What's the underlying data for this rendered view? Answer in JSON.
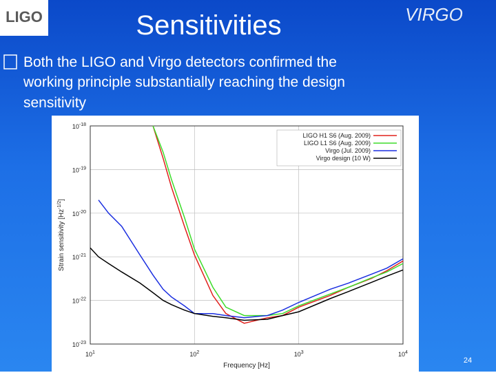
{
  "slide": {
    "title": "Sensitivities",
    "logo_left": "LIGO",
    "logo_right": "VIRGO",
    "bullet_lines": [
      "Both the LIGO and Virgo detectors confirmed the",
      "working principle substantially reaching the design",
      "sensitivity"
    ],
    "page_number": "24"
  },
  "chart_data": {
    "type": "line",
    "xscale": "log",
    "yscale": "log",
    "grid": true,
    "legend": "top-right",
    "xlabel": "Frequency [Hz]",
    "ylabel": {
      "text": "Strain sensitivity [Hz",
      "sup": "-1/2",
      "end": "]"
    },
    "x": [
      10,
      12,
      15,
      20,
      30,
      40,
      50,
      60,
      80,
      100,
      150,
      200,
      300,
      500,
      700,
      1000,
      2000,
      3000,
      5000,
      7000,
      10000
    ],
    "xlim": [
      10,
      10000
    ],
    "ylim": [
      1e-23,
      1e-18
    ],
    "xticks": [
      {
        "value": 10,
        "label": "10",
        "exp": "1"
      },
      {
        "value": 100,
        "label": "10",
        "exp": "2"
      },
      {
        "value": 1000,
        "label": "10",
        "exp": "3"
      },
      {
        "value": 10000,
        "label": "10",
        "exp": "4"
      }
    ],
    "yticks": [
      {
        "value": 1e-23,
        "label": "10",
        "exp": "-23"
      },
      {
        "value": 1e-22,
        "label": "10",
        "exp": "-22"
      },
      {
        "value": 1e-21,
        "label": "10",
        "exp": "-21"
      },
      {
        "value": 1e-20,
        "label": "10",
        "exp": "-20"
      },
      {
        "value": 1e-19,
        "label": "10",
        "exp": "-19"
      },
      {
        "value": 1e-18,
        "label": "10",
        "exp": "-18"
      }
    ],
    "series": [
      {
        "name": "LIGO H1 S6 (Aug. 2009)",
        "color": "#e0201c",
        "values": [
          null,
          null,
          null,
          null,
          null,
          1e-18,
          1.8e-19,
          4e-20,
          5e-21,
          1.1e-21,
          1.3e-22,
          5e-23,
          3e-23,
          4e-23,
          4.5e-23,
          7e-23,
          1.3e-22,
          2e-22,
          3.2e-22,
          4.8e-22,
          8e-22
        ]
      },
      {
        "name": "LIGO L1 S6 (Aug. 2009)",
        "color": "#3ddc2a",
        "values": [
          null,
          null,
          null,
          null,
          null,
          1e-18,
          2.5e-19,
          6e-20,
          8e-21,
          1.5e-21,
          2e-22,
          7e-23,
          4.5e-23,
          4.5e-23,
          5e-23,
          7.5e-23,
          1.4e-22,
          2e-22,
          3.3e-22,
          4.5e-22,
          7e-22
        ]
      },
      {
        "name": "Virgo (Jul. 2009)",
        "color": "#1a2ee0",
        "values": [
          null,
          2e-20,
          1e-20,
          5e-21,
          1.1e-21,
          3.8e-22,
          1.8e-22,
          1.2e-22,
          7.5e-23,
          5e-23,
          5e-23,
          4.5e-23,
          4e-23,
          4.5e-23,
          6e-23,
          9e-23,
          1.8e-22,
          2.5e-22,
          4e-22,
          5.5e-22,
          9e-22
        ]
      },
      {
        "name": "Virgo design (10 W)",
        "color": "#000000",
        "values": [
          1.6e-21,
          1e-21,
          7e-22,
          4.5e-22,
          2.5e-22,
          1.5e-22,
          1e-22,
          8e-23,
          6e-23,
          5e-23,
          4.3e-23,
          4e-23,
          3.5e-23,
          3.7e-23,
          4.5e-23,
          5.5e-23,
          1.1e-22,
          1.6e-22,
          2.6e-22,
          3.6e-22,
          5e-22
        ]
      }
    ]
  }
}
